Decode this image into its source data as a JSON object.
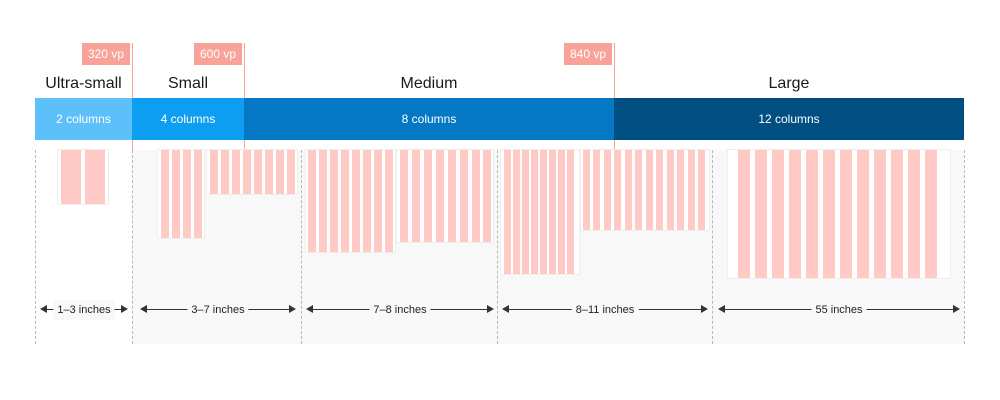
{
  "breakpoints": [
    {
      "name": "Ultra-small",
      "columns_label": "2 columns",
      "columns": 2
    },
    {
      "name": "Small",
      "columns_label": "4 columns",
      "columns": 4
    },
    {
      "name": "Medium",
      "columns_label": "8 columns",
      "columns": 8
    },
    {
      "name": "Large",
      "columns_label": "12 columns",
      "columns": 12
    }
  ],
  "thresholds": [
    "320 vp",
    "600 vp",
    "840 vp"
  ],
  "device_groups": [
    {
      "label": "1–3 inches",
      "devices": [
        {
          "columns": 2
        }
      ]
    },
    {
      "label": "3–7 inches",
      "devices": [
        {
          "columns": 4
        },
        {
          "columns": 8
        }
      ]
    },
    {
      "label": "7–8 inches",
      "devices": [
        {
          "columns": 8
        },
        {
          "columns": 8
        }
      ]
    },
    {
      "label": "8–11 inches",
      "devices": [
        {
          "columns": 8
        },
        {
          "columns": 12
        }
      ]
    },
    {
      "label": "55 inches",
      "devices": [
        {
          "columns": 12
        }
      ]
    }
  ],
  "colors": {
    "ultra_small": "#5ec0fa",
    "small": "#0d9ef2",
    "medium": "#0478c4",
    "large": "#004f82",
    "threshold_flag": "#f8a29a",
    "grid_column": "#ffc9c6"
  }
}
